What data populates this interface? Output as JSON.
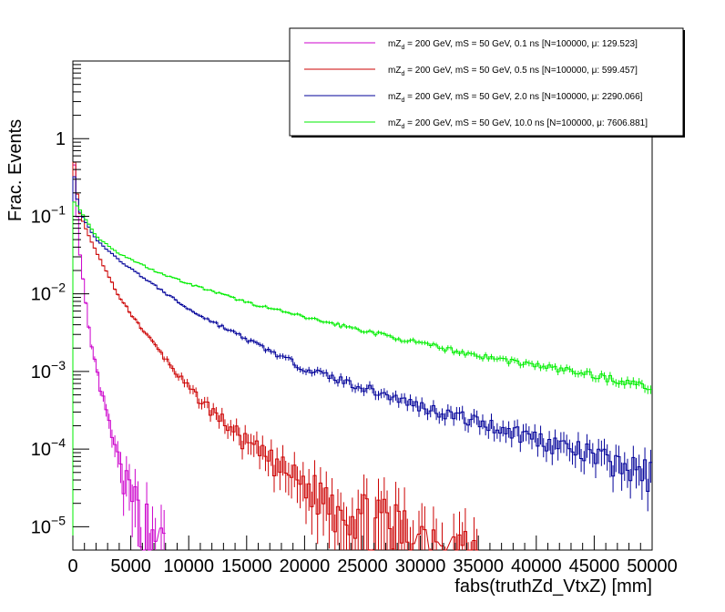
{
  "chart_data": {
    "type": "line",
    "style": "step-histogram-with-error-bars",
    "xlabel": "fabs(truthZd_VtxZ) [mm]",
    "ylabel": "Frac. Events",
    "xlim": [
      0,
      50000
    ],
    "ylim": [
      5e-06,
      10
    ],
    "yscale": "log",
    "x_ticks": [
      0,
      5000,
      10000,
      15000,
      20000,
      25000,
      30000,
      35000,
      40000,
      45000,
      50000
    ],
    "x_tick_labels": [
      "0",
      "5000",
      "10000",
      "15000",
      "20000",
      "25000",
      "30000",
      "35000",
      "40000",
      "45000",
      "50000"
    ],
    "y_ticks": [
      1e-05,
      0.0001,
      0.001,
      0.01,
      0.1,
      1
    ],
    "y_tick_labels": [
      {
        "base": "10",
        "exp": "−5"
      },
      {
        "base": "10",
        "exp": "−4"
      },
      {
        "base": "10",
        "exp": "−3"
      },
      {
        "base": "10",
        "exp": "−2"
      },
      {
        "base": "10",
        "exp": "−1"
      },
      {
        "base": "1",
        "exp": ""
      }
    ],
    "bins": 200,
    "legend_position": "top-right",
    "series": [
      {
        "name": "mZ_d = 200 GeV, mS = 50 GeV, 0.1 ns [N=100000, μ: 129.523]",
        "label_main": "mZ",
        "label_sub": "d",
        "label_rest": " = 200 GeV, mS = 50 GeV, 0.1 ns [N=100000, μ: 129.523]",
        "color": "#cc00cc",
        "mean": 129.523,
        "model": [
          [
            0,
            1.0
          ],
          [
            500,
            0.045
          ],
          [
            1500,
            0.0025
          ],
          [
            2500,
            0.0005
          ],
          [
            4000,
            6e-05
          ],
          [
            5000,
            2.5e-05
          ],
          [
            7500,
            6.5e-06
          ],
          [
            8000,
            4e-06
          ]
        ]
      },
      {
        "name": "mZ_d = 200 GeV, mS = 50 GeV, 0.5 ns [N=100000, μ: 599.457]",
        "label_main": "mZ",
        "label_sub": "d",
        "label_rest": " = 200 GeV, mS = 50 GeV, 0.5 ns [N=100000, μ: 599.457]",
        "color": "#cc0000",
        "mean": 599.457,
        "model": [
          [
            0,
            0.8
          ],
          [
            500,
            0.12
          ],
          [
            1500,
            0.05
          ],
          [
            4000,
            0.009
          ],
          [
            6000,
            0.0035
          ],
          [
            10000,
            0.0006
          ],
          [
            15000,
            0.00012
          ],
          [
            20000,
            3.5e-05
          ],
          [
            25000,
            1.5e-05
          ],
          [
            30000,
            8e-06
          ],
          [
            35000,
            4.5e-06
          ]
        ]
      },
      {
        "name": "mZ_d = 200 GeV, mS = 50 GeV, 2.0 ns [N=100000, μ: 2290.066]",
        "label_main": "mZ",
        "label_sub": "d",
        "label_rest": " = 200 GeV, mS = 50 GeV, 2.0 ns [N=100000, μ: 2290.066]",
        "color": "#000099",
        "mean": 2290.066,
        "model": [
          [
            0,
            0.45
          ],
          [
            500,
            0.12
          ],
          [
            2000,
            0.05
          ],
          [
            4000,
            0.027
          ],
          [
            7000,
            0.013
          ],
          [
            10000,
            0.0063
          ],
          [
            15000,
            0.0026
          ],
          [
            20000,
            0.0011
          ],
          [
            30000,
            0.00036
          ],
          [
            40000,
            0.00014
          ],
          [
            50000,
            4.8e-05
          ]
        ]
      },
      {
        "name": "mZ_d = 200 GeV, mS = 50 GeV, 10.0 ns [N=100000, μ: 7606.881]",
        "label_main": "mZ",
        "label_sub": "d",
        "label_rest": " = 200 GeV, mS = 50 GeV, 10.0 ns [N=100000, μ: 7606.881]",
        "color": "#00ee00",
        "mean": 7606.881,
        "model": [
          [
            0,
            0.16
          ],
          [
            500,
            0.13
          ],
          [
            2000,
            0.055
          ],
          [
            4000,
            0.033
          ],
          [
            7000,
            0.02
          ],
          [
            10000,
            0.0135
          ],
          [
            15000,
            0.0078
          ],
          [
            20000,
            0.005
          ],
          [
            25000,
            0.0034
          ],
          [
            30000,
            0.0023
          ],
          [
            35000,
            0.0016
          ],
          [
            40000,
            0.0012
          ],
          [
            45000,
            0.0009
          ],
          [
            50000,
            0.00062
          ]
        ]
      }
    ]
  }
}
